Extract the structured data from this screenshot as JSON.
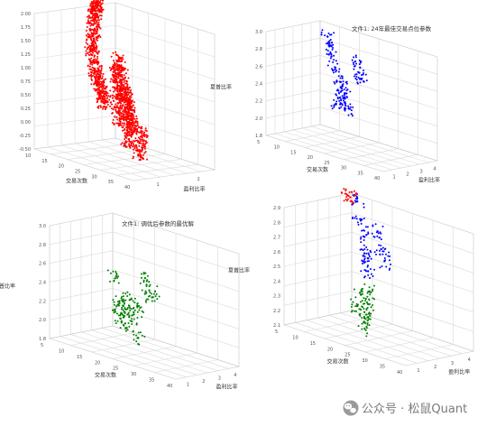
{
  "chart_data": [
    {
      "type": "scatter",
      "title": "",
      "labels": {
        "y": "交易次数",
        "x": "盈利比率",
        "z": "夏普比率"
      },
      "yticks": [
        "40",
        "35",
        "30",
        "25",
        "20",
        "15",
        "10"
      ],
      "xticks": [
        "1",
        "2"
      ],
      "zticks": [
        "-0.50",
        "-0.25",
        "0.00",
        "0.25",
        "0.50",
        "0.75",
        "1.00",
        "1.25",
        "1.50",
        "1.75",
        "2.00"
      ],
      "series": [
        {
          "color": "#ff0000",
          "x": [
            1.1,
            1.2,
            1.3,
            1.4,
            1.5,
            1.6,
            1.7,
            1.8,
            1.9,
            2.0,
            2.1,
            2.2,
            1.3,
            1.5,
            1.7,
            1.9,
            2.0,
            1.4,
            1.6,
            1.8,
            1.2,
            1.5,
            1.7,
            1.9,
            2.1,
            1.3,
            1.6
          ],
          "y": [
            24,
            22,
            20,
            18,
            16,
            14,
            13,
            12,
            11,
            10,
            9,
            8,
            26,
            23,
            21,
            19,
            17,
            28,
            25,
            22,
            30,
            27,
            24,
            20,
            15,
            32,
            29
          ],
          "z": [
            0.6,
            0.7,
            0.8,
            0.9,
            1.0,
            1.2,
            1.4,
            1.6,
            1.8,
            1.9,
            2.0,
            2.0,
            0.3,
            0.5,
            0.7,
            0.9,
            1.1,
            0.2,
            0.4,
            0.6,
            0.0,
            0.2,
            0.4,
            0.6,
            0.8,
            -0.2,
            0.0
          ]
        }
      ]
    },
    {
      "type": "scatter",
      "title": "文件1: 24年最佳交易点位参数",
      "labels": {
        "y": "交易次数",
        "x": "盈利比率",
        "z": "夏普比率"
      },
      "yticks": [
        "40",
        "35",
        "30",
        "25",
        "20",
        "15",
        "10",
        "5"
      ],
      "xticks": [
        "1",
        "2",
        "3",
        "4"
      ],
      "zticks": [
        "1.8",
        "2.0",
        "2.2",
        "2.4",
        "2.6",
        "2.8",
        "3.0"
      ],
      "series": [
        {
          "color": "#0000ff",
          "x": [
            1.2,
            1.4,
            1.6,
            2.6,
            2.8,
            3.0,
            3.2,
            3.4,
            3.6,
            3.8,
            2.4,
            2.9,
            3.3,
            3.7
          ],
          "y": [
            30,
            28,
            29,
            20,
            18,
            17,
            15,
            14,
            12,
            10,
            21,
            19,
            16,
            11
          ],
          "z": [
            2.8,
            2.9,
            2.7,
            2.4,
            2.5,
            2.3,
            2.2,
            2.6,
            2.7,
            2.9,
            2.3,
            2.2,
            2.4,
            2.8
          ]
        }
      ]
    },
    {
      "type": "scatter",
      "title": "文件1: 调优后参数的最优解",
      "labels": {
        "y": "交易次数",
        "x": "盈利比率",
        "z": "夏普比率"
      },
      "yticks": [
        "40",
        "35",
        "30",
        "25",
        "20",
        "15",
        "10",
        "5"
      ],
      "xticks": [
        "1",
        "2",
        "3",
        "4"
      ],
      "zticks": [
        "1.8",
        "2.0",
        "2.2",
        "2.4",
        "2.6",
        "2.8",
        "3.0"
      ],
      "series": [
        {
          "color": "#008000",
          "x": [
            1.1,
            1.3,
            1.5,
            2.4,
            2.6,
            2.8,
            3.0,
            3.2,
            3.4,
            3.6,
            3.8,
            2.2,
            2.9,
            3.3
          ],
          "y": [
            30,
            28,
            29,
            20,
            18,
            17,
            15,
            14,
            12,
            10,
            9,
            22,
            19,
            13
          ],
          "z": [
            2.6,
            2.7,
            2.5,
            2.2,
            2.3,
            2.1,
            2.0,
            2.1,
            2.0,
            2.1,
            2.4,
            2.3,
            1.9,
            2.2
          ]
        }
      ]
    },
    {
      "type": "scatter",
      "title": "",
      "labels": {
        "y": "交易次数",
        "x": "盈利比率",
        "z": "夏普比率"
      },
      "yticks": [
        "40",
        "35",
        "30",
        "25",
        "20",
        "15",
        "10",
        "5"
      ],
      "xticks": [
        "1",
        "2",
        "3",
        "4"
      ],
      "zticks": [
        "2.1",
        "2.2",
        "2.3",
        "2.4",
        "2.5",
        "2.6",
        "2.7",
        "2.8",
        "2.9"
      ],
      "series": [
        {
          "color": "#0000ff",
          "x": [
            1.1,
            1.3,
            1.5,
            2.8,
            3.0,
            3.2,
            3.4,
            3.6,
            3.8
          ],
          "y": [
            30,
            28,
            29,
            18,
            17,
            15,
            14,
            12,
            10
          ],
          "z": [
            2.8,
            2.9,
            2.7,
            2.6,
            2.5,
            2.6,
            2.7,
            2.8,
            2.9
          ]
        },
        {
          "color": "#008000",
          "x": [
            2.6,
            2.8,
            3.0,
            3.2,
            3.4,
            3.6,
            2.4
          ],
          "y": [
            19,
            18,
            16,
            15,
            13,
            11,
            20
          ],
          "z": [
            2.3,
            2.2,
            2.1,
            2.2,
            2.3,
            2.2,
            2.4
          ]
        },
        {
          "color": "#ff0000",
          "x": [
            4.0,
            4.1
          ],
          "y": [
            7,
            6
          ],
          "z": [
            2.9,
            2.9
          ]
        }
      ]
    }
  ],
  "watermark": {
    "text": "公众号 · 松鼠Quant",
    "icon": "wechat-logo-icon"
  }
}
